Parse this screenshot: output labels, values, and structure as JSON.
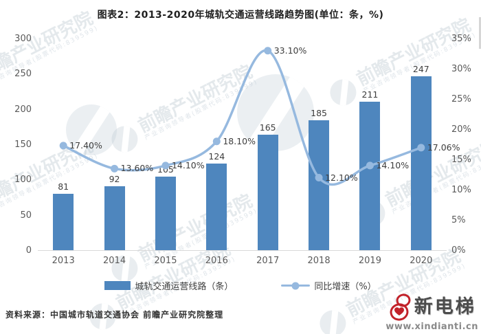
{
  "chart_data": {
    "type": "bar+line",
    "title": "图表2：2013-2020年城轨交通运营线路趋势图(单位：条，%)",
    "categories": [
      "2013",
      "2014",
      "2015",
      "2016",
      "2017",
      "2018",
      "2019",
      "2020"
    ],
    "series": [
      {
        "name": "城轨交通运营线路（条）",
        "type": "bar",
        "axis": "left",
        "color": "#4E86BE",
        "values": [
          81,
          92,
          105,
          124,
          165,
          185,
          211,
          247
        ]
      },
      {
        "name": "同比增速（%）",
        "type": "line",
        "axis": "right",
        "color": "#96B9DF",
        "values": [
          17.4,
          13.6,
          14.1,
          18.1,
          33.1,
          12.1,
          14.1,
          17.06
        ],
        "point_labels": [
          "17.40%",
          "13.60%",
          "14.10%",
          "18.10%",
          "33.10%",
          "12.10%",
          "14.10%",
          "17.06%"
        ]
      }
    ],
    "left_axis": {
      "min": 0,
      "max": 300,
      "ticks": [
        "300",
        "250",
        "200",
        "150",
        "100",
        "50",
        "0"
      ]
    },
    "right_axis": {
      "min": 0,
      "max": 35,
      "ticks": [
        "35%",
        "30%",
        "25%",
        "20%",
        "15%",
        "10%",
        "5%",
        "0%"
      ]
    },
    "grid": false,
    "legend_position": "bottom"
  },
  "source_note": "资料来源：中国城市轨道交通协会 前瞻产业研究院整理",
  "watermark": {
    "text": "前瞻产业研究院",
    "subtext": "产业咨询领导者(股票代码:839599)"
  },
  "logo": {
    "brand": "新电梯",
    "url_text": "www.xindianti.cn",
    "accent_color": "#C2222A"
  }
}
